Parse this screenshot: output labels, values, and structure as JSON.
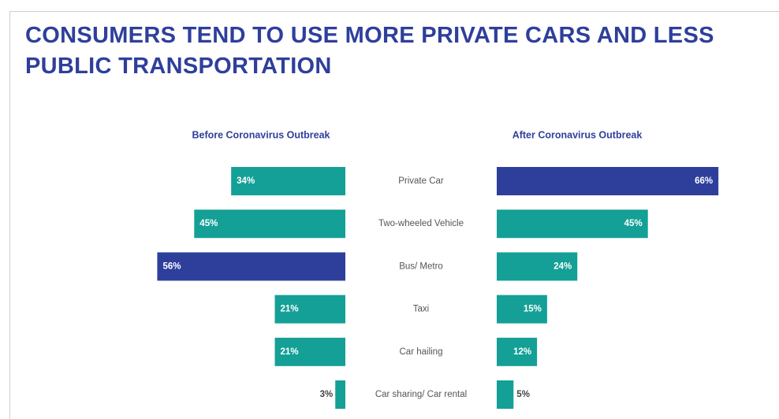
{
  "chart_data": {
    "type": "bar",
    "title": "CONSUMERS TEND TO USE MORE PRIVATE CARS AND LESS PUBLIC TRANSPORTATION",
    "categories": [
      "Private Car",
      "Two-wheeled Vehicle",
      "Bus/ Metro",
      "Taxi",
      "Car hailing",
      "Car sharing/ Car rental"
    ],
    "series": [
      {
        "name": "Before Coronavirus Outbreak",
        "values": [
          34,
          45,
          56,
          21,
          21,
          3
        ],
        "value_labels": [
          "34%",
          "45%",
          "56%",
          "21%",
          "21%",
          "3%"
        ],
        "colors": [
          "#14a096",
          "#14a096",
          "#2e3f9b",
          "#14a096",
          "#14a096",
          "#14a096"
        ]
      },
      {
        "name": "After Coronavirus Outbreak",
        "values": [
          66,
          45,
          24,
          15,
          12,
          5
        ],
        "value_labels": [
          "66%",
          "45%",
          "24%",
          "15%",
          "12%",
          "5%"
        ],
        "colors": [
          "#2e3f9b",
          "#14a096",
          "#14a096",
          "#14a096",
          "#14a096",
          "#14a096"
        ]
      }
    ]
  }
}
